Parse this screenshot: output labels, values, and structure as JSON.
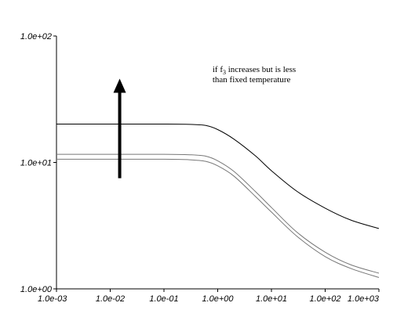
{
  "chart_data": {
    "type": "line",
    "title": "",
    "xlabel": "",
    "ylabel": "",
    "x_scale": "log",
    "y_scale": "log",
    "xlim": [
      0.001,
      1000
    ],
    "ylim": [
      1,
      100
    ],
    "x_ticks": [
      {
        "value": 0.001,
        "label": "1.0e-03"
      },
      {
        "value": 0.01,
        "label": "1.0e-02"
      },
      {
        "value": 0.1,
        "label": "1.0e-01"
      },
      {
        "value": 1,
        "label": "1.0e+00"
      },
      {
        "value": 10,
        "label": "1.0e+01"
      },
      {
        "value": 100,
        "label": "1.0e+02"
      },
      {
        "value": 1000,
        "label": "1.0e+03"
      }
    ],
    "y_ticks": [
      {
        "value": 1,
        "label": "1.0e+00"
      },
      {
        "value": 10,
        "label": "1.0e+01"
      },
      {
        "value": 100,
        "label": "1.0e+02"
      }
    ],
    "grid": false,
    "legend": "none",
    "series": [
      {
        "color": "#000000",
        "x": [
          0.001,
          0.01,
          0.1,
          0.3,
          0.6,
          1,
          2,
          5,
          10,
          30,
          100,
          300,
          1000
        ],
        "y": [
          20.1,
          20.1,
          20.1,
          20.0,
          19.6,
          18.2,
          15.3,
          11.3,
          8.6,
          5.9,
          4.35,
          3.5,
          3.0
        ]
      },
      {
        "color": "#777777",
        "x": [
          0.001,
          0.01,
          0.1,
          0.3,
          0.6,
          1,
          2,
          5,
          10,
          30,
          100,
          300,
          1000
        ],
        "y": [
          11.6,
          11.6,
          11.6,
          11.5,
          11.2,
          10.3,
          8.5,
          5.9,
          4.4,
          2.8,
          1.95,
          1.55,
          1.33
        ]
      },
      {
        "color": "#777777",
        "x": [
          0.001,
          0.01,
          0.1,
          0.3,
          0.6,
          1,
          2,
          5,
          10,
          30,
          100,
          300,
          1000
        ],
        "y": [
          10.6,
          10.6,
          10.6,
          10.5,
          10.2,
          9.4,
          7.8,
          5.4,
          4.05,
          2.6,
          1.8,
          1.45,
          1.23
        ]
      }
    ],
    "annotations": {
      "arrow": {
        "x": 0.015,
        "y_from": 7.5,
        "y_to": 46,
        "direction": "up"
      },
      "text_line1_prefix": "if f",
      "text_line1_sub": "3",
      "text_line1_suffix": " increases but is less",
      "text_line2": "than fixed temperature",
      "text_x": 0.8,
      "text_y_line1": 52,
      "text_y_line2": 43
    }
  }
}
